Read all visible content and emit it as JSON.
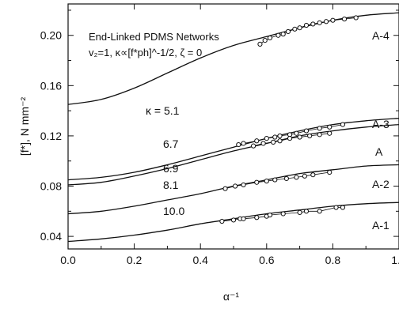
{
  "chart_data": {
    "type": "line",
    "title": "End-Linked PDMS Networks",
    "subtitle": "v₂=1, κ∝[f*ph]^-1/2, ζ = 0",
    "xlabel": "α⁻¹",
    "ylabel": "[f*], N mm⁻²",
    "xlim": [
      0.0,
      1.0
    ],
    "ylim": [
      0.03,
      0.225
    ],
    "grid": false,
    "x_ticks": [
      0.0,
      0.2,
      0.4,
      0.6,
      0.8,
      1.0
    ],
    "x_tick_labels": [
      "0.0",
      "0.2",
      "0.4",
      "0.6",
      "0.8",
      "1.0"
    ],
    "y_ticks": [
      0.04,
      0.08,
      0.12,
      0.16,
      0.2
    ],
    "y_tick_labels": [
      "0.04",
      "0.08",
      "0.12",
      "0.16",
      "0.20"
    ],
    "series": [
      {
        "name": "A-4",
        "kappa_label": "κ = 5.1",
        "curve": [
          [
            0.0,
            0.145
          ],
          [
            0.1,
            0.149
          ],
          [
            0.2,
            0.158
          ],
          [
            0.3,
            0.17
          ],
          [
            0.4,
            0.182
          ],
          [
            0.5,
            0.192
          ],
          [
            0.6,
            0.199
          ],
          [
            0.7,
            0.206
          ],
          [
            0.8,
            0.212
          ],
          [
            0.9,
            0.216
          ],
          [
            1.0,
            0.218
          ]
        ],
        "points": [
          [
            0.58,
            0.193
          ],
          [
            0.595,
            0.196
          ],
          [
            0.61,
            0.198
          ],
          [
            0.635,
            0.2
          ],
          [
            0.65,
            0.201
          ],
          [
            0.665,
            0.203
          ],
          [
            0.685,
            0.205
          ],
          [
            0.7,
            0.206
          ],
          [
            0.72,
            0.208
          ],
          [
            0.74,
            0.209
          ],
          [
            0.76,
            0.21
          ],
          [
            0.78,
            0.211
          ],
          [
            0.8,
            0.212
          ],
          [
            0.835,
            0.213
          ],
          [
            0.87,
            0.214
          ]
        ]
      },
      {
        "name": "A-3",
        "kappa_label": "6.7",
        "curve": [
          [
            0.0,
            0.085
          ],
          [
            0.1,
            0.087
          ],
          [
            0.2,
            0.091
          ],
          [
            0.3,
            0.097
          ],
          [
            0.4,
            0.104
          ],
          [
            0.5,
            0.111
          ],
          [
            0.6,
            0.118
          ],
          [
            0.7,
            0.124
          ],
          [
            0.8,
            0.129
          ],
          [
            0.9,
            0.132
          ],
          [
            1.0,
            0.134
          ]
        ],
        "points": [
          [
            0.515,
            0.113
          ],
          [
            0.53,
            0.114
          ],
          [
            0.57,
            0.116
          ],
          [
            0.6,
            0.118
          ],
          [
            0.625,
            0.119
          ],
          [
            0.64,
            0.12
          ],
          [
            0.67,
            0.121
          ],
          [
            0.69,
            0.122
          ],
          [
            0.72,
            0.124
          ],
          [
            0.76,
            0.126
          ],
          [
            0.79,
            0.127
          ],
          [
            0.83,
            0.129
          ]
        ]
      },
      {
        "name": "A",
        "kappa_label": "6.9",
        "curve": [
          [
            0.0,
            0.081
          ],
          [
            0.1,
            0.083
          ],
          [
            0.2,
            0.088
          ],
          [
            0.3,
            0.094
          ],
          [
            0.4,
            0.101
          ],
          [
            0.5,
            0.108
          ],
          [
            0.6,
            0.114
          ],
          [
            0.7,
            0.12
          ],
          [
            0.8,
            0.124
          ],
          [
            0.9,
            0.127
          ],
          [
            1.0,
            0.129
          ]
        ],
        "points": [
          [
            0.56,
            0.112
          ],
          [
            0.59,
            0.114
          ],
          [
            0.62,
            0.115
          ],
          [
            0.64,
            0.116
          ],
          [
            0.67,
            0.118
          ],
          [
            0.7,
            0.119
          ],
          [
            0.73,
            0.12
          ],
          [
            0.76,
            0.121
          ],
          [
            0.79,
            0.122
          ]
        ]
      },
      {
        "name": "A-2",
        "kappa_label": "8.1",
        "curve": [
          [
            0.0,
            0.058
          ],
          [
            0.1,
            0.06
          ],
          [
            0.2,
            0.064
          ],
          [
            0.3,
            0.069
          ],
          [
            0.4,
            0.074
          ],
          [
            0.5,
            0.08
          ],
          [
            0.6,
            0.085
          ],
          [
            0.7,
            0.09
          ],
          [
            0.8,
            0.093
          ],
          [
            0.9,
            0.096
          ],
          [
            1.0,
            0.097
          ]
        ],
        "points": [
          [
            0.475,
            0.078
          ],
          [
            0.505,
            0.08
          ],
          [
            0.53,
            0.081
          ],
          [
            0.57,
            0.083
          ],
          [
            0.6,
            0.084
          ],
          [
            0.625,
            0.085
          ],
          [
            0.66,
            0.086
          ],
          [
            0.69,
            0.087
          ],
          [
            0.715,
            0.088
          ],
          [
            0.74,
            0.089
          ],
          [
            0.79,
            0.091
          ]
        ]
      },
      {
        "name": "A-1",
        "kappa_label": "10.0",
        "curve": [
          [
            0.0,
            0.036
          ],
          [
            0.1,
            0.038
          ],
          [
            0.2,
            0.041
          ],
          [
            0.3,
            0.045
          ],
          [
            0.4,
            0.05
          ],
          [
            0.5,
            0.054
          ],
          [
            0.6,
            0.058
          ],
          [
            0.7,
            0.061
          ],
          [
            0.8,
            0.064
          ],
          [
            0.9,
            0.066
          ],
          [
            1.0,
            0.067
          ]
        ],
        "points": [
          [
            0.465,
            0.052
          ],
          [
            0.5,
            0.053
          ],
          [
            0.52,
            0.054
          ],
          [
            0.53,
            0.054
          ],
          [
            0.57,
            0.055
          ],
          [
            0.6,
            0.056
          ],
          [
            0.61,
            0.057
          ],
          [
            0.65,
            0.058
          ],
          [
            0.7,
            0.059
          ],
          [
            0.72,
            0.06
          ],
          [
            0.76,
            0.06
          ],
          [
            0.81,
            0.063
          ],
          [
            0.83,
            0.063
          ]
        ]
      }
    ]
  }
}
